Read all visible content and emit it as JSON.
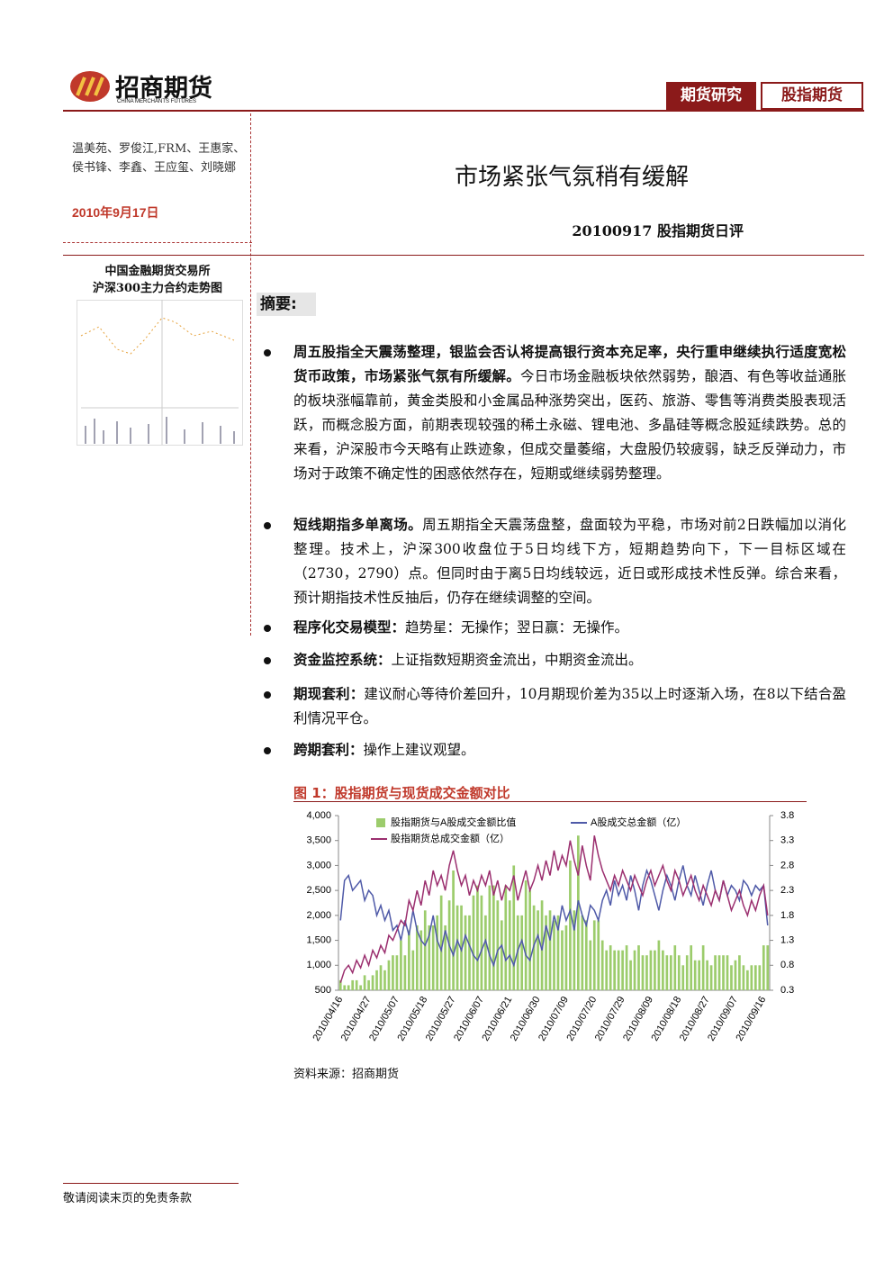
{
  "header": {
    "logo": "招商期货",
    "logo_en": "CHINA MERCHANTS FUTURES",
    "tag1": "期货研究",
    "tag2": "股指期货"
  },
  "authors": "温美苑、罗俊江,FRM、王惠家、侯书锋、李鑫、王应玺、刘晓娜",
  "date": "2010年9月17日",
  "title": "市场紧张气氛稍有缓解",
  "subtitle": "20100917 股指期货日评",
  "sidebar": {
    "line1": "中国金融期货交易所",
    "line2": "沪深300主力合约走势图"
  },
  "summary": {
    "heading": "摘要:",
    "bullets": [
      {
        "bold": "周五股指全天震荡整理，银监会否认将提高银行资本充足率，央行重申继续执行适度宽松货币政策，市场紧张气氛有所缓解。",
        "text": "今日市场金融板块依然弱势，酿酒、有色等收益通胀的板块涨幅靠前，黄金类股和小金属品种涨势突出，医药、旅游、零售等消费类股表现活跃，而概念股方面，前期表现较强的稀土永磁、锂电池、多晶硅等概念股延续跌势。总的来看，沪深股市今天略有止跌迹象，但成交量萎缩，大盘股仍较疲弱，缺乏反弹动力，市场对于政策不确定性的困惑依然存在，短期或继续弱势整理。"
      },
      {
        "bold": "短线期指多单离场。",
        "text": "周五期指全天震荡盘整，盘面较为平稳，市场对前2日跌幅加以消化整理。技术上，沪深300收盘位于5日均线下方，短期趋势向下，下一目标区域在（2730，2790）点。但同时由于离5日均线较远，近日或形成技术性反弹。综合来看，预计期指技术性反抽后，仍存在继续调整的空间。"
      },
      {
        "bold": "程序化交易模型：",
        "text": "趋势星：无操作；翌日赢：无操作。"
      },
      {
        "bold": "资金监控系统：",
        "text": "上证指数短期资金流出，中期资金流出。"
      },
      {
        "bold": "期现套利：",
        "text": "建议耐心等待价差回升，10月期现价差为35以上时逐渐入场，在8以下结合盈利情况平仓。"
      },
      {
        "bold": "跨期套利：",
        "text": "操作上建议观望。"
      }
    ]
  },
  "figure_title": "图 1：股指期货与现货成交金额对比",
  "source": "资料来源：招商期货",
  "footer": "敬请阅读末页的免责条款",
  "chart_data": {
    "type": "combo",
    "categories": [
      "2010/04/16",
      null,
      null,
      null,
      null,
      null,
      null,
      "2010/04/27",
      null,
      null,
      null,
      null,
      null,
      null,
      "2010/05/07",
      null,
      null,
      null,
      null,
      null,
      null,
      "2010/05/18",
      null,
      null,
      null,
      null,
      null,
      null,
      "2010/05/27",
      null,
      null,
      null,
      null,
      null,
      null,
      "2010/06/07",
      null,
      null,
      null,
      null,
      null,
      null,
      "2010/06/21",
      null,
      null,
      null,
      null,
      null,
      null,
      "2010/06/30",
      null,
      null,
      null,
      null,
      null,
      null,
      "2010/07/09",
      null,
      null,
      null,
      null,
      null,
      null,
      "2010/07/20",
      null,
      null,
      null,
      null,
      null,
      null,
      "2010/07/29",
      null,
      null,
      null,
      null,
      null,
      null,
      "2010/08/09",
      null,
      null,
      null,
      null,
      null,
      null,
      "2010/08/18",
      null,
      null,
      null,
      null,
      null,
      null,
      "2010/08/27",
      null,
      null,
      null,
      null,
      null,
      null,
      "2010/09/07",
      null,
      null,
      null,
      null,
      null,
      null,
      "2010/09/16",
      null
    ],
    "series": [
      {
        "name": "股指期货与A股成交金额比值",
        "type": "bar",
        "axis": "y2",
        "color": "#9ccc6c",
        "values": [
          0.5,
          0.4,
          0.4,
          0.5,
          0.5,
          0.4,
          0.6,
          0.5,
          0.6,
          0.7,
          0.8,
          0.7,
          0.9,
          1.0,
          1.0,
          1.3,
          1.0,
          1.5,
          1.1,
          1.6,
          1.5,
          1.9,
          1.6,
          1.6,
          1.8,
          2.2,
          1.6,
          2.1,
          2.7,
          2.0,
          2.0,
          1.8,
          1.8,
          2.2,
          2.4,
          2.2,
          1.8,
          2.4,
          2.4,
          2.1,
          1.7,
          2.4,
          2.1,
          2.8,
          1.8,
          1.8,
          2.5,
          2.3,
          2.0,
          1.9,
          2.1,
          1.8,
          1.9,
          1.7,
          1.8,
          1.5,
          1.6,
          2.9,
          1.9,
          3.4,
          1.8,
          1.7,
          1.3,
          1.7,
          1.7,
          1.3,
          1.1,
          1.2,
          1.1,
          1.1,
          1.1,
          1.2,
          0.9,
          1.1,
          1.2,
          1.0,
          1.0,
          1.1,
          1.1,
          1.3,
          1.1,
          1.0,
          1.0,
          1.2,
          1.0,
          0.8,
          1.0,
          1.2,
          0.9,
          0.9,
          1.2,
          0.9,
          0.8,
          1.0,
          1.0,
          1.0,
          1.0,
          0.8,
          0.9,
          1.0,
          0.8,
          0.7,
          0.8,
          0.8,
          0.8,
          1.2,
          1.2
        ]
      },
      {
        "name": "A股成交总金额（亿）",
        "type": "line",
        "color": "#4f5aa8",
        "values": [
          1900,
          2700,
          2800,
          2500,
          2600,
          2700,
          2300,
          2500,
          2400,
          2000,
          2200,
          1900,
          2100,
          1700,
          1800,
          1500,
          1900,
          1600,
          2100,
          1700,
          1500,
          1400,
          1600,
          2000,
          1500,
          1300,
          1700,
          1400,
          1200,
          1500,
          1300,
          1600,
          1400,
          1200,
          1100,
          1300,
          1500,
          1200,
          1000,
          1300,
          1400,
          1100,
          1200,
          1000,
          1300,
          1500,
          1200,
          1100,
          1400,
          1600,
          1300,
          1800,
          1500,
          2000,
          1700,
          2200,
          1900,
          2100,
          1700,
          2300,
          2000,
          1800,
          2200,
          2100,
          1900,
          2300,
          2500,
          2200,
          2700,
          2400,
          2600,
          2300,
          2800,
          2500,
          2100,
          2600,
          2900,
          2700,
          2400,
          2100,
          2500,
          2800,
          2600,
          2300,
          2700,
          3000,
          2600,
          2400,
          2800,
          2500,
          2200,
          2600,
          2900,
          2500,
          2300,
          2700,
          2400,
          2600,
          2500,
          2300,
          2700,
          2600,
          2400,
          2600,
          2500,
          2600,
          1800
        ]
      },
      {
        "name": "股指期货总成交金额（亿）",
        "type": "line",
        "color": "#9b2f6f",
        "values": [
          650,
          900,
          1000,
          850,
          1100,
          950,
          1200,
          1000,
          1300,
          1150,
          1400,
          1250,
          1600,
          1500,
          1700,
          1900,
          1800,
          2300,
          2100,
          2500,
          2200,
          2700,
          2400,
          2900,
          2600,
          2800,
          2500,
          3000,
          3300,
          2900,
          2600,
          2800,
          2400,
          2700,
          2500,
          2800,
          2600,
          2900,
          2400,
          2700,
          2300,
          2600,
          2500,
          2800,
          2300,
          2600,
          2900,
          2500,
          2700,
          3000,
          2700,
          3100,
          2800,
          3300,
          2900,
          3200,
          3000,
          3500,
          3100,
          2800,
          3400,
          3000,
          2700,
          3600,
          3200,
          2900,
          2700,
          2500,
          2800,
          2600,
          2900,
          2700,
          2500,
          2800,
          2600,
          2400,
          2700,
          2900,
          2600,
          2800,
          3000,
          2700,
          2500,
          2900,
          2700,
          2400,
          2600,
          2800,
          2500,
          2300,
          2600,
          2400,
          2200,
          2500,
          2300,
          2700,
          2400,
          2100,
          2300,
          2500,
          2200,
          2000,
          2300,
          2100,
          2400,
          2600,
          2000
        ]
      }
    ],
    "ylim": [
      500,
      4000
    ],
    "yticks": [
      500,
      {
        "value": 1000,
        "label": "1,000"
      },
      {
        "value": 1500,
        "label": "1,500"
      },
      {
        "value": 2000,
        "label": "2,000"
      },
      {
        "value": 2500,
        "label": "2,500"
      },
      {
        "value": 3000,
        "label": "3,000"
      },
      {
        "value": 3500,
        "label": "3,500"
      },
      {
        "value": 4000,
        "label": "4,000"
      }
    ],
    "y2lim": [
      0.3,
      3.8
    ],
    "y2ticks": [
      0.3,
      0.8,
      1.3,
      1.8,
      2.3,
      2.8,
      3.3,
      3.8
    ]
  }
}
